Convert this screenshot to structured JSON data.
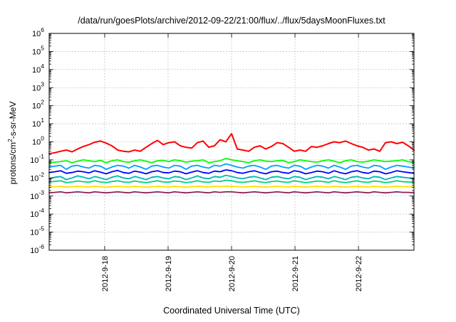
{
  "chart_data": {
    "type": "line",
    "title": "/data/run/goesPlots/archive/2012-09-22/21:00/flux/../flux/5daysMoonFluxes.txt",
    "xlabel": "Coordinated Universal Time (UTC)",
    "ylabel_main": "protons/cm",
    "ylabel_sup": "2",
    "ylabel_tail": "-s-sr-MeV",
    "y_scale": "log",
    "ylim": [
      1e-06,
      1000000.0
    ],
    "y_ticks": [
      {
        "base": "10",
        "exp": "-6"
      },
      {
        "base": "10",
        "exp": "-5"
      },
      {
        "base": "10",
        "exp": "-4"
      },
      {
        "base": "10",
        "exp": "-3"
      },
      {
        "base": "10",
        "exp": "-2"
      },
      {
        "base": "10",
        "exp": "-1"
      },
      {
        "base": "10",
        "exp": "0"
      },
      {
        "base": "10",
        "exp": "1"
      },
      {
        "base": "10",
        "exp": "2"
      },
      {
        "base": "10",
        "exp": "3"
      },
      {
        "base": "10",
        "exp": "4"
      },
      {
        "base": "10",
        "exp": "5"
      },
      {
        "base": "10",
        "exp": "6"
      }
    ],
    "xlim": [
      "2012-9-17 03:00",
      "2012-9-22 21:00"
    ],
    "x_ticks": [
      "2012-9-18",
      "2012-9-19",
      "2012-9-20",
      "2012-9-21",
      "2012-9-22"
    ],
    "grid": true,
    "legend": "none",
    "series": [
      {
        "color": "#ff0000",
        "values": [
          0.22,
          0.25,
          0.3,
          0.35,
          0.28,
          0.4,
          0.55,
          0.7,
          0.95,
          1.1,
          0.85,
          0.6,
          0.35,
          0.3,
          0.28,
          0.35,
          0.3,
          0.5,
          0.8,
          1.2,
          0.7,
          0.9,
          1.0,
          0.6,
          0.5,
          0.45,
          0.9,
          1.1,
          0.5,
          0.6,
          1.3,
          1.0,
          2.8,
          0.4,
          0.35,
          0.3,
          0.5,
          0.6,
          0.4,
          0.55,
          0.9,
          0.8,
          0.5,
          0.3,
          0.35,
          0.3,
          0.55,
          0.5,
          0.6,
          0.8,
          1.0,
          0.9,
          1.1,
          0.8,
          0.6,
          0.5,
          0.35,
          0.4,
          0.3,
          0.9,
          1.0,
          0.8,
          0.95,
          0.6,
          0.35
        ]
      },
      {
        "color": "#00ff00",
        "values": [
          0.07,
          0.075,
          0.08,
          0.09,
          0.07,
          0.085,
          0.1,
          0.09,
          0.08,
          0.095,
          0.07,
          0.09,
          0.1,
          0.08,
          0.075,
          0.09,
          0.1,
          0.085,
          0.07,
          0.09,
          0.095,
          0.08,
          0.1,
          0.09,
          0.075,
          0.085,
          0.09,
          0.1,
          0.07,
          0.08,
          0.09,
          0.12,
          0.1,
          0.09,
          0.08,
          0.07,
          0.09,
          0.1,
          0.085,
          0.08,
          0.09,
          0.095,
          0.07,
          0.08,
          0.1,
          0.09,
          0.08,
          0.075,
          0.09,
          0.1,
          0.085,
          0.07,
          0.09,
          0.1,
          0.08,
          0.075,
          0.085,
          0.1,
          0.09,
          0.08,
          0.085,
          0.09,
          0.1,
          0.08,
          0.07
        ]
      },
      {
        "color": "#00a0ff",
        "values": [
          0.04,
          0.045,
          0.05,
          0.03,
          0.045,
          0.05,
          0.04,
          0.035,
          0.05,
          0.045,
          0.03,
          0.04,
          0.05,
          0.045,
          0.035,
          0.05,
          0.04,
          0.03,
          0.045,
          0.05,
          0.04,
          0.035,
          0.05,
          0.045,
          0.03,
          0.045,
          0.05,
          0.04,
          0.035,
          0.05,
          0.045,
          0.06,
          0.05,
          0.04,
          0.035,
          0.045,
          0.05,
          0.04,
          0.03,
          0.045,
          0.05,
          0.04,
          0.035,
          0.05,
          0.045,
          0.03,
          0.04,
          0.05,
          0.045,
          0.035,
          0.05,
          0.04,
          0.03,
          0.045,
          0.05,
          0.04,
          0.035,
          0.05,
          0.045,
          0.03,
          0.04,
          0.05,
          0.045,
          0.04,
          0.035
        ]
      },
      {
        "color": "#0000ff",
        "values": [
          0.02,
          0.022,
          0.025,
          0.018,
          0.02,
          0.024,
          0.022,
          0.019,
          0.025,
          0.021,
          0.017,
          0.022,
          0.026,
          0.02,
          0.018,
          0.024,
          0.021,
          0.017,
          0.022,
          0.025,
          0.02,
          0.019,
          0.024,
          0.022,
          0.017,
          0.021,
          0.025,
          0.02,
          0.018,
          0.024,
          0.022,
          0.028,
          0.025,
          0.02,
          0.018,
          0.022,
          0.025,
          0.02,
          0.017,
          0.022,
          0.024,
          0.02,
          0.018,
          0.025,
          0.022,
          0.017,
          0.02,
          0.024,
          0.022,
          0.018,
          0.025,
          0.02,
          0.017,
          0.022,
          0.025,
          0.02,
          0.018,
          0.024,
          0.022,
          0.017,
          0.02,
          0.025,
          0.022,
          0.02,
          0.018
        ]
      },
      {
        "color": "#00b8b8",
        "values": [
          0.009,
          0.011,
          0.012,
          0.008,
          0.01,
          0.013,
          0.011,
          0.009,
          0.012,
          0.01,
          0.008,
          0.011,
          0.013,
          0.01,
          0.009,
          0.012,
          0.01,
          0.008,
          0.011,
          0.012,
          0.01,
          0.009,
          0.012,
          0.011,
          0.008,
          0.01,
          0.013,
          0.01,
          0.009,
          0.012,
          0.011,
          0.014,
          0.012,
          0.01,
          0.009,
          0.011,
          0.012,
          0.01,
          0.008,
          0.011,
          0.012,
          0.01,
          0.009,
          0.012,
          0.011,
          0.008,
          0.01,
          0.012,
          0.011,
          0.009,
          0.012,
          0.01,
          0.008,
          0.011,
          0.012,
          0.01,
          0.009,
          0.012,
          0.011,
          0.008,
          0.01,
          0.012,
          0.011,
          0.01,
          0.009
        ]
      },
      {
        "color": "#00d080",
        "values": [
          0.006,
          0.0065,
          0.007,
          0.0055,
          0.006,
          0.0068,
          0.0062,
          0.0058,
          0.007,
          0.006,
          0.0055,
          0.0063,
          0.007,
          0.006,
          0.0057,
          0.0068,
          0.006,
          0.0055,
          0.0062,
          0.007,
          0.006,
          0.0058,
          0.0068,
          0.0063,
          0.0055,
          0.006,
          0.007,
          0.006,
          0.0057,
          0.0068,
          0.0063,
          0.0075,
          0.007,
          0.006,
          0.0057,
          0.0062,
          0.007,
          0.006,
          0.0055,
          0.0063,
          0.0068,
          0.006,
          0.0057,
          0.007,
          0.0062,
          0.0055,
          0.006,
          0.0068,
          0.0063,
          0.0057,
          0.007,
          0.006,
          0.0055,
          0.0062,
          0.007,
          0.006,
          0.0057,
          0.0068,
          0.0063,
          0.0055,
          0.006,
          0.007,
          0.0062,
          0.006,
          0.0057
        ]
      },
      {
        "color": "#ffe000",
        "values": [
          0.0032,
          0.0033,
          0.0034,
          0.0031,
          0.0033,
          0.0034,
          0.0033,
          0.0032,
          0.0034,
          0.0033,
          0.0031,
          0.0033,
          0.0034,
          0.0033,
          0.0032,
          0.0034,
          0.0033,
          0.0031,
          0.0033,
          0.0034,
          0.0033,
          0.0032,
          0.0034,
          0.0033,
          0.0031,
          0.0033,
          0.0034,
          0.0033,
          0.0032,
          0.0034,
          0.0033,
          0.0035,
          0.0034,
          0.0033,
          0.0032,
          0.0033,
          0.0034,
          0.0033,
          0.0031,
          0.0033,
          0.0034,
          0.0033,
          0.0032,
          0.0034,
          0.0033,
          0.0031,
          0.0033,
          0.0034,
          0.0033,
          0.0032,
          0.0034,
          0.0033,
          0.0031,
          0.0033,
          0.0034,
          0.0033,
          0.0032,
          0.0034,
          0.0033,
          0.0031,
          0.0033,
          0.0034,
          0.0033,
          0.0033,
          0.0032
        ]
      },
      {
        "color": "#8b2252",
        "values": [
          0.0015,
          0.0016,
          0.0017,
          0.0015,
          0.0016,
          0.0017,
          0.0016,
          0.0015,
          0.0017,
          0.0016,
          0.0015,
          0.0016,
          0.0017,
          0.0016,
          0.0015,
          0.0017,
          0.0016,
          0.0015,
          0.0016,
          0.0017,
          0.0016,
          0.0015,
          0.0017,
          0.0016,
          0.0015,
          0.0016,
          0.0017,
          0.0016,
          0.0015,
          0.0017,
          0.0016,
          0.0017,
          0.0017,
          0.0016,
          0.0015,
          0.0016,
          0.0017,
          0.0016,
          0.0015,
          0.0016,
          0.0017,
          0.0016,
          0.0015,
          0.0017,
          0.0016,
          0.0015,
          0.0016,
          0.0017,
          0.0016,
          0.0015,
          0.0017,
          0.0016,
          0.0015,
          0.0016,
          0.0017,
          0.0016,
          0.0015,
          0.0017,
          0.0016,
          0.0015,
          0.0016,
          0.0017,
          0.0016,
          0.0016,
          0.0015
        ]
      }
    ]
  }
}
